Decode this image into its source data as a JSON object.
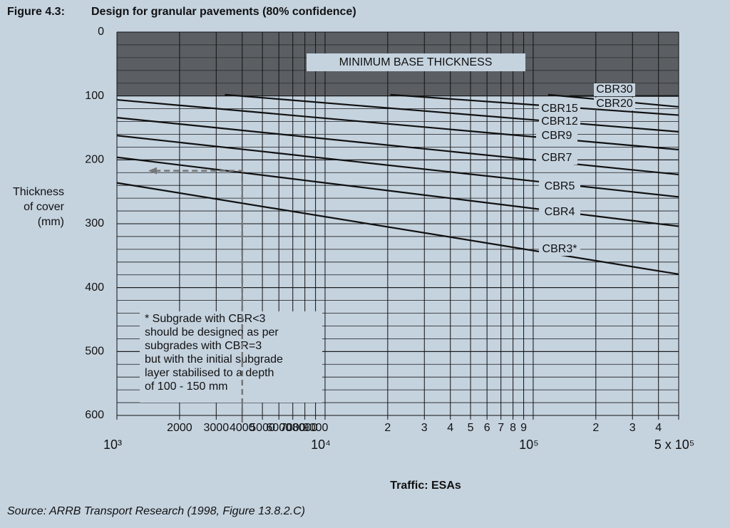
{
  "figure_label": "Figure 4.3:",
  "chart_data": {
    "type": "line",
    "title": "Design for granular pavements (80% confidence)",
    "xlabel": "Traffic: ESAs",
    "ylabel": [
      "Thickness",
      "of cover",
      "(mm)"
    ],
    "xscale": "log",
    "xlim": [
      1000,
      500000
    ],
    "ylim": [
      0,
      600
    ],
    "y_inverted": true,
    "yticks": [
      0,
      100,
      200,
      300,
      400,
      500,
      600
    ],
    "minor_grid_step": 20,
    "xticks": [
      {
        "value": 1000,
        "label": "10³"
      },
      2000,
      3000,
      4000,
      5000,
      6000,
      7000,
      8000,
      9000,
      {
        "value": 10000,
        "label": "10⁴"
      },
      {
        "value": 20000,
        "label": "2"
      },
      {
        "value": 30000,
        "label": "3"
      },
      {
        "value": 40000,
        "label": "4"
      },
      {
        "value": 50000,
        "label": "5"
      },
      {
        "value": 60000,
        "label": "6"
      },
      {
        "value": 70000,
        "label": "7"
      },
      {
        "value": 80000,
        "label": "8"
      },
      {
        "value": 90000,
        "label": "9"
      },
      {
        "value": 100000,
        "label": "10⁵"
      },
      {
        "value": 200000,
        "label": "2"
      },
      {
        "value": 300000,
        "label": "3"
      },
      {
        "value": 400000,
        "label": "4"
      },
      {
        "value": 500000,
        "label": "5 x 10⁵"
      }
    ],
    "shaded_band": {
      "label": "MINIMUM BASE THICKNESS",
      "range": [
        0,
        100
      ],
      "color": "#5b5f63"
    },
    "color": "#111111",
    "series": [
      {
        "name": "CBR30",
        "x": [
          150000,
          500000
        ],
        "values": [
          100,
          100
        ]
      },
      {
        "name": "CBR20",
        "x": [
          118000,
          500000
        ],
        "values": [
          98,
          117
        ]
      },
      {
        "name": "CBR15",
        "x": [
          20600,
          500000
        ],
        "values": [
          98,
          130
        ]
      },
      {
        "name": "CBR12",
        "x": [
          3300,
          500000
        ],
        "values": [
          98,
          156
        ]
      },
      {
        "name": "CBR9",
        "x": [
          1000,
          500000
        ],
        "values": [
          106,
          184
        ]
      },
      {
        "name": "CBR7",
        "x": [
          1000,
          500000
        ],
        "values": [
          134,
          223
        ]
      },
      {
        "name": "CBR5",
        "x": [
          1000,
          500000
        ],
        "values": [
          162,
          258
        ]
      },
      {
        "name": "CBR4",
        "x": [
          1000,
          500000
        ],
        "values": [
          196,
          304
        ]
      },
      {
        "name": "CBR3*",
        "x": [
          1000,
          500000
        ],
        "values": [
          236,
          379
        ]
      }
    ],
    "example": {
      "x": 4000,
      "y": 217
    },
    "footnote": [
      "* Subgrade with CBR<3",
      "should be designed as per",
      "subgrades with CBR=3",
      "but with the initial subgrade",
      "layer stabilised to a depth",
      "of 100 - 150 mm"
    ]
  },
  "source": "Source: ARRB Transport Research (1998, Figure 13.8.2.C)"
}
